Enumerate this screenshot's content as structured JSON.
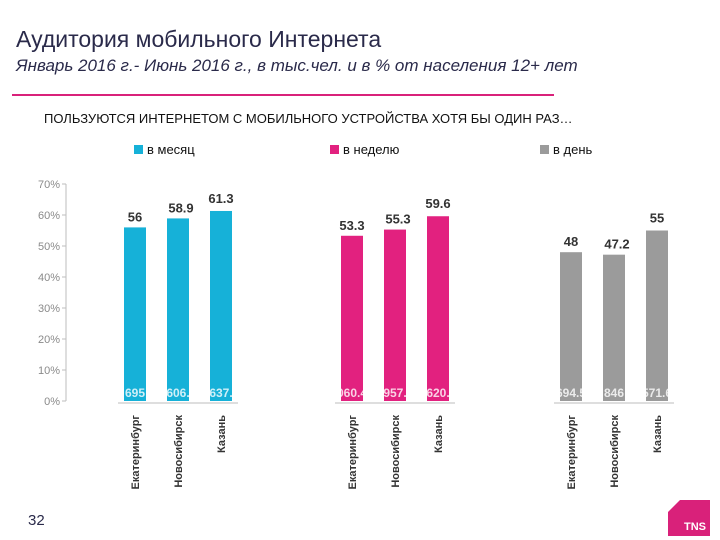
{
  "header": {
    "title": "Аудитория мобильного Интернета",
    "subtitle": "Январь 2016 г.- Июнь 2016 г., в тыс.чел. и в % от населения 12+ лет"
  },
  "footer": {
    "page_number": "32",
    "logo_text": "TNS"
  },
  "colors": {
    "accent": "#d9217a",
    "month": "#16b1d8",
    "week": "#e2217f",
    "day": "#9b9b9b"
  },
  "chart_data": {
    "type": "bar",
    "title": "ПОЛЬЗУЮТСЯ ИНТЕРНЕТОМ С МОБИЛЬНОГО УСТРОЙСТВА ХОТЯ БЫ ОДИН РАЗ…",
    "ylim": [
      0,
      70
    ],
    "yticks": [
      "0%",
      "10%",
      "20%",
      "30%",
      "40%",
      "50%",
      "60%",
      "70%"
    ],
    "categories": [
      "Екатеринбург",
      "Новосибирск",
      "Казань"
    ],
    "legend_position": "top",
    "series": [
      {
        "name": "в месяц",
        "values": [
          56,
          58.9,
          61.3
        ],
        "value_labels": [
          "56",
          "58.9",
          "61.3"
        ],
        "base_labels": [
          "695",
          "606.",
          "637."
        ]
      },
      {
        "name": "в неделю",
        "values": [
          53.3,
          55.3,
          59.6
        ],
        "value_labels": [
          "53.3",
          "55.3",
          "59.6"
        ],
        "base_labels": [
          "060.4",
          "957.",
          "620."
        ]
      },
      {
        "name": "в день",
        "values": [
          48,
          47.2,
          55
        ],
        "value_labels": [
          "48",
          "47.2",
          "55"
        ],
        "base_labels": [
          "694.5",
          "846",
          "571.6"
        ]
      }
    ]
  }
}
